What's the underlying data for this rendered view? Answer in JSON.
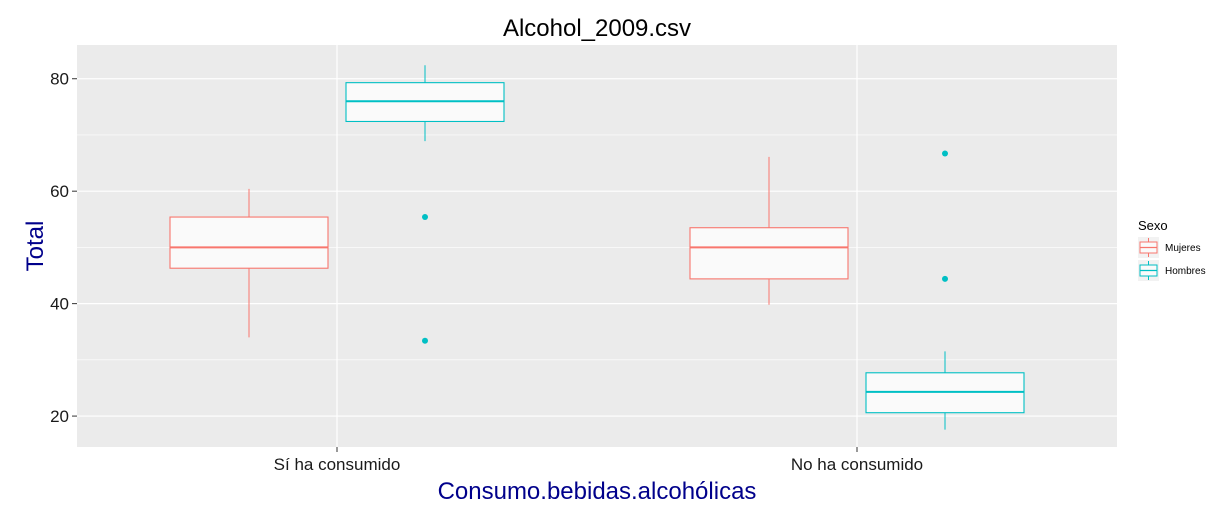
{
  "chart_data": {
    "type": "boxplot",
    "title": "Alcohol_2009.csv",
    "xlabel": "Consumo.bebidas.alcohólicas",
    "ylabel": "Total",
    "categories": [
      "Sí ha consumido",
      "No ha consumido"
    ],
    "ylim": [
      14.5,
      86
    ],
    "yticks": [
      20,
      40,
      60,
      80
    ],
    "grid": true,
    "legend": {
      "title": "Sexo",
      "position": "right",
      "entries": [
        "Mujeres",
        "Hombres"
      ]
    },
    "series": [
      {
        "name": "Mujeres",
        "color": "#F8766D",
        "boxes": [
          {
            "category": "Sí ha consumido",
            "min": 34,
            "q1": 46.3,
            "median": 50,
            "q3": 55.4,
            "max": 60.4,
            "outliers": []
          },
          {
            "category": "No ha consumido",
            "min": 39.8,
            "q1": 44.4,
            "median": 50,
            "q3": 53.5,
            "max": 66.1,
            "outliers": []
          }
        ]
      },
      {
        "name": "Hombres",
        "color": "#00BFC4",
        "boxes": [
          {
            "category": "Sí ha consumido",
            "min": 68.9,
            "q1": 72.4,
            "median": 76,
            "q3": 79.3,
            "max": 82.4,
            "outliers": [
              55.4,
              33.4
            ]
          },
          {
            "category": "No ha consumido",
            "min": 17.6,
            "q1": 20.6,
            "median": 24.3,
            "q3": 27.7,
            "max": 31.5,
            "outliers": [
              66.7,
              44.4
            ]
          }
        ]
      }
    ]
  },
  "colors": {
    "panel_background": "#EBEBEB",
    "grid_major": "#FFFFFF",
    "box_fill": "#FAFAFA",
    "axis_title": "#00008B"
  }
}
